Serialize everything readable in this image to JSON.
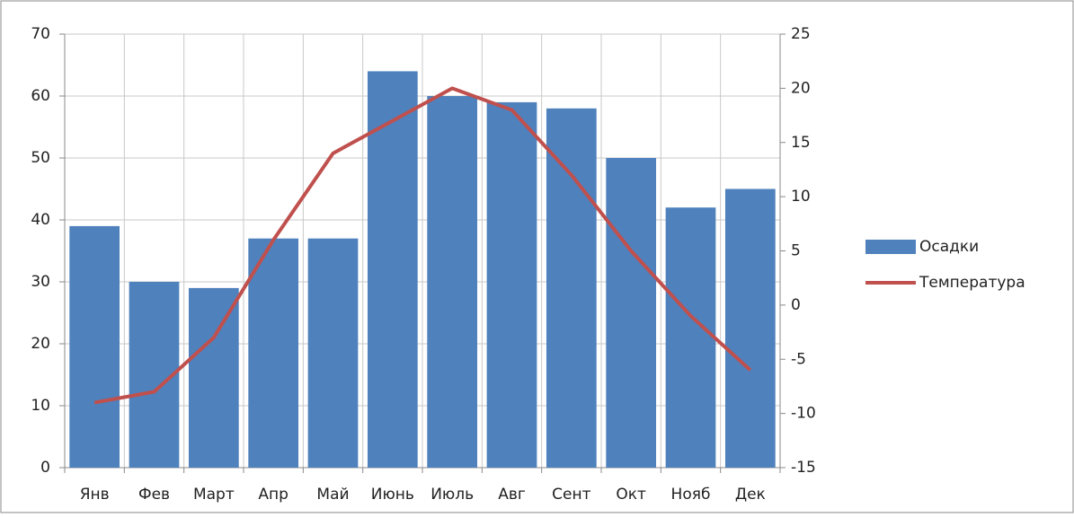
{
  "chart_data": {
    "type": "bar",
    "categories": [
      "Янв",
      "Фев",
      "Март",
      "Апр",
      "Май",
      "Июнь",
      "Июль",
      "Авг",
      "Сент",
      "Окт",
      "Нояб",
      "Дек"
    ],
    "series": [
      {
        "name": "Осадки",
        "type": "bar",
        "color": "#4f81bd",
        "values": [
          39,
          30,
          29,
          37,
          37,
          64,
          60,
          59,
          58,
          50,
          42,
          45
        ]
      },
      {
        "name": "Температура",
        "type": "line",
        "axis": "y2",
        "color": "#c0504d",
        "values": [
          -9,
          -8,
          -3,
          6,
          14,
          17,
          20,
          18,
          12,
          5,
          -1,
          -6
        ]
      }
    ],
    "ylim": [
      0,
      70
    ],
    "yticks": [
      0,
      10,
      20,
      30,
      40,
      50,
      60,
      70
    ],
    "y2lim": [
      -15,
      25
    ],
    "y2ticks": [
      -15,
      -10,
      -5,
      0,
      5,
      10,
      15,
      20,
      25
    ],
    "grid": true,
    "legend": "right"
  }
}
